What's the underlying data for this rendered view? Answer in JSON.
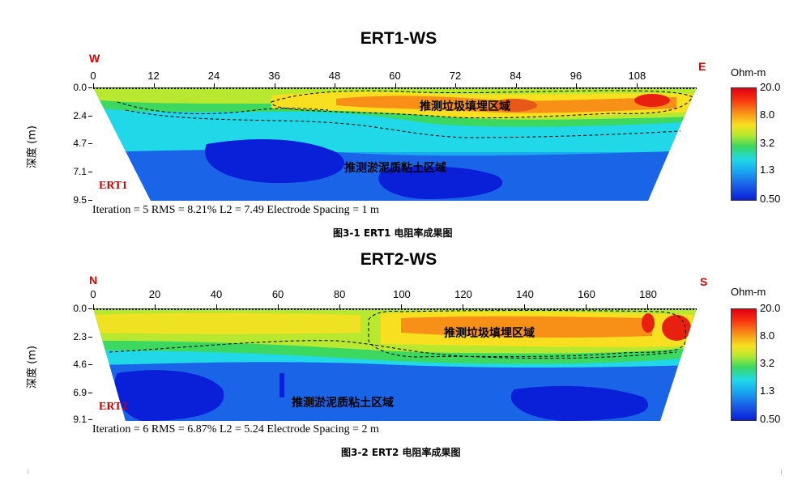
{
  "chart_data": [
    {
      "type": "heatmap",
      "title": "ERT1-WS",
      "left_label": "W",
      "right_label": "E",
      "x_ticks": [
        "0",
        "12",
        "24",
        "36",
        "48",
        "60",
        "72",
        "84",
        "96",
        "108"
      ],
      "x_tick_values": [
        0,
        12,
        24,
        36,
        48,
        60,
        72,
        84,
        96,
        108
      ],
      "xlim": [
        0,
        120
      ],
      "ylabel": "深度 (m)",
      "y_ticks": [
        "0.0",
        "2.4",
        "4.7",
        "7.1",
        "9.5"
      ],
      "y_tick_values": [
        0,
        2.4,
        4.7,
        7.1,
        9.5
      ],
      "ylim": [
        0,
        9.5
      ],
      "profile_label": "ERT1",
      "stats": "Iteration = 5    RMS = 8.21%    L2 = 7.49    Electrode Spacing = 1 m",
      "caption": "图3-1    ERT1 电阻率成果图",
      "zone_upper": "推测垃圾填埋区域",
      "zone_lower": "推测淤泥质粘土区域",
      "colorbar_unit": "Ohm-m",
      "colorbar_ticks": [
        "20.0",
        "8.0",
        "3.2",
        "1.3",
        "0.50"
      ],
      "colorbar_values": [
        20.0,
        8.0,
        3.2,
        1.3,
        0.5
      ]
    },
    {
      "type": "heatmap",
      "title": "ERT2-WS",
      "left_label": "N",
      "right_label": "S",
      "x_ticks": [
        "0",
        "20",
        "40",
        "60",
        "80",
        "100",
        "120",
        "140",
        "160",
        "180"
      ],
      "x_tick_values": [
        0,
        20,
        40,
        60,
        80,
        100,
        120,
        140,
        160,
        180
      ],
      "xlim": [
        0,
        196
      ],
      "ylabel": "深度 (m)",
      "y_ticks": [
        "0.0",
        "2.3",
        "4.6",
        "6.9",
        "9.1"
      ],
      "y_tick_values": [
        0,
        2.3,
        4.6,
        6.9,
        9.1
      ],
      "ylim": [
        0,
        9.1
      ],
      "profile_label": "ERT2",
      "stats": "Iteration = 6    RMS = 6.87%    L2 = 5.24    Electrode Spacing = 2 m",
      "caption": "图3-2 ERT2 电阻率成果图",
      "zone_upper": "推测垃圾填埋区域",
      "zone_lower": "推测淤泥质粘土区域",
      "colorbar_unit": "Ohm-m",
      "colorbar_ticks": [
        "20.0",
        "8.0",
        "3.2",
        "1.3",
        "0.50"
      ],
      "colorbar_values": [
        20.0,
        8.0,
        3.2,
        1.3,
        0.5
      ]
    }
  ],
  "colors": {
    "deep_blue": "#0a1fd8",
    "blue": "#1a64e8",
    "light_blue": "#1aa8f0",
    "cyan": "#20d8e8",
    "green": "#3cd860",
    "yellow_green": "#b8e830",
    "yellow": "#f8e020",
    "orange": "#f89018",
    "red": "#e82010",
    "label_red": "#e00000"
  }
}
